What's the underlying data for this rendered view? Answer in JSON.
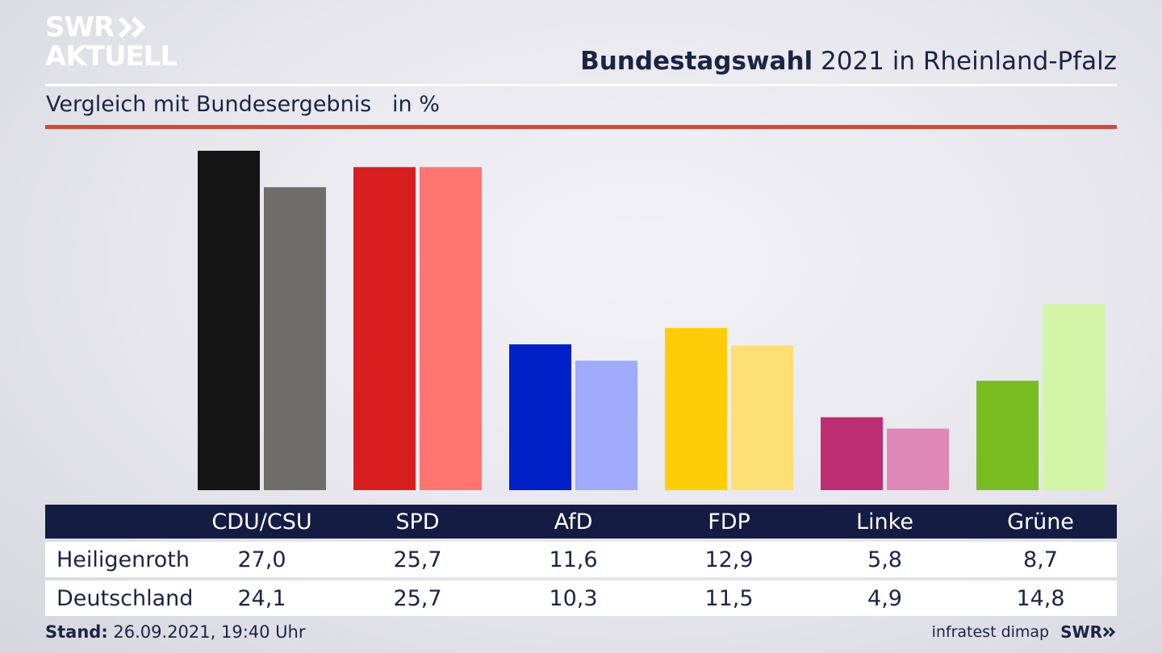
{
  "brand": {
    "logo_line1": "SWR",
    "logo_line2": "AKTUELL",
    "footer_logo": "SWR"
  },
  "header": {
    "title_strong": "Bundestagswahl",
    "title_rest": " 2021 in Rheinland-Pfalz",
    "subtitle": "Vergleich mit Bundesergebnis   in %"
  },
  "footer": {
    "stand_label": "Stand:",
    "stand_value": " 26.09.2021, 19:40 Uhr",
    "source": "infratest dimap"
  },
  "chart_data": {
    "type": "bar",
    "title": "Bundestagswahl 2021 in Rheinland-Pfalz",
    "ylim": [
      0,
      27.0
    ],
    "grid": false,
    "categories": [
      "CDU/CSU",
      "SPD",
      "AfD",
      "FDP",
      "Linke",
      "Grüne"
    ],
    "series": [
      {
        "name": "Heiligenroth",
        "values": [
          27.0,
          25.7,
          11.6,
          12.9,
          5.8,
          8.7
        ],
        "labels": [
          "27,0",
          "25,7",
          "11,6",
          "12,9",
          "5,8",
          "8,7"
        ],
        "colors": [
          "#141414",
          "#d61e1f",
          "#0020c8",
          "#ffcc0a",
          "#bd2e74",
          "#78bc21"
        ]
      },
      {
        "name": "Deutschland",
        "values": [
          24.1,
          25.7,
          10.3,
          11.5,
          4.9,
          14.8
        ],
        "labels": [
          "24,1",
          "25,7",
          "10,3",
          "11,5",
          "4,9",
          "14,8"
        ],
        "colors": [
          "#6e6d6b",
          "#ff7570",
          "#9eabff",
          "#fde074",
          "#df88b8",
          "#d3f5a8"
        ]
      }
    ]
  }
}
